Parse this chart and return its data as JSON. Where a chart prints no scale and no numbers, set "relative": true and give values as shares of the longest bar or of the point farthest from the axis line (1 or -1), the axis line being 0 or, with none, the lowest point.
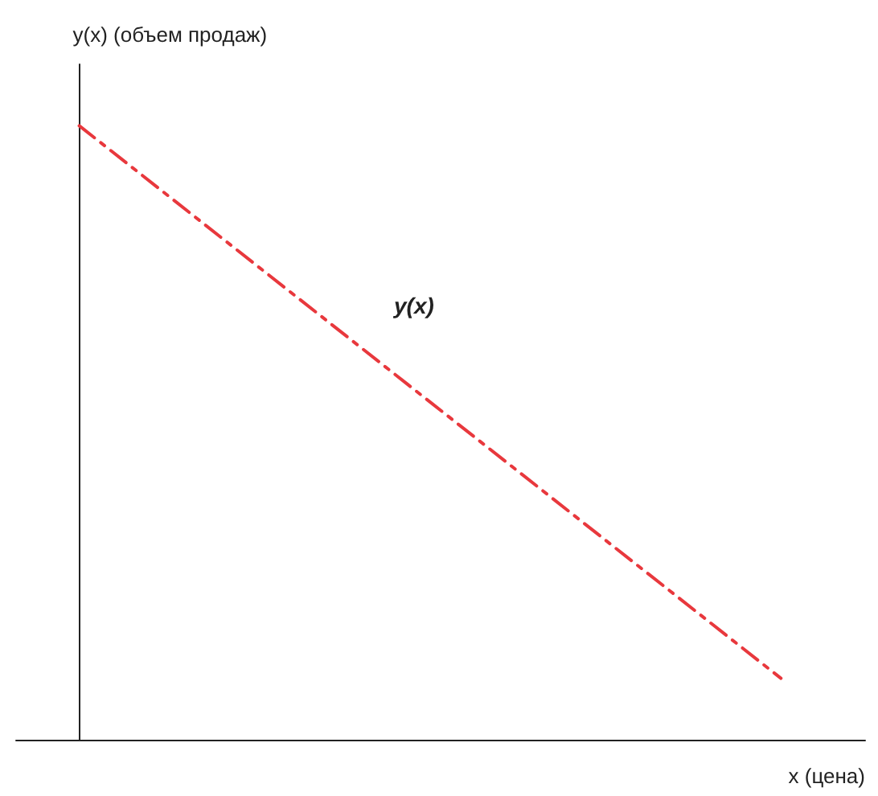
{
  "chart_data": {
    "type": "line",
    "relative": true,
    "ylabel": "y(x) (объем продаж)",
    "xlabel": "x (цена)",
    "annotations": [
      "y(x)"
    ],
    "categories": [
      null,
      null
    ],
    "series": [
      {
        "color": "#e8383d",
        "values": [
          1,
          0.1
        ]
      }
    ],
    "line_style": "dashed",
    "marker": "none",
    "grid": false
  }
}
